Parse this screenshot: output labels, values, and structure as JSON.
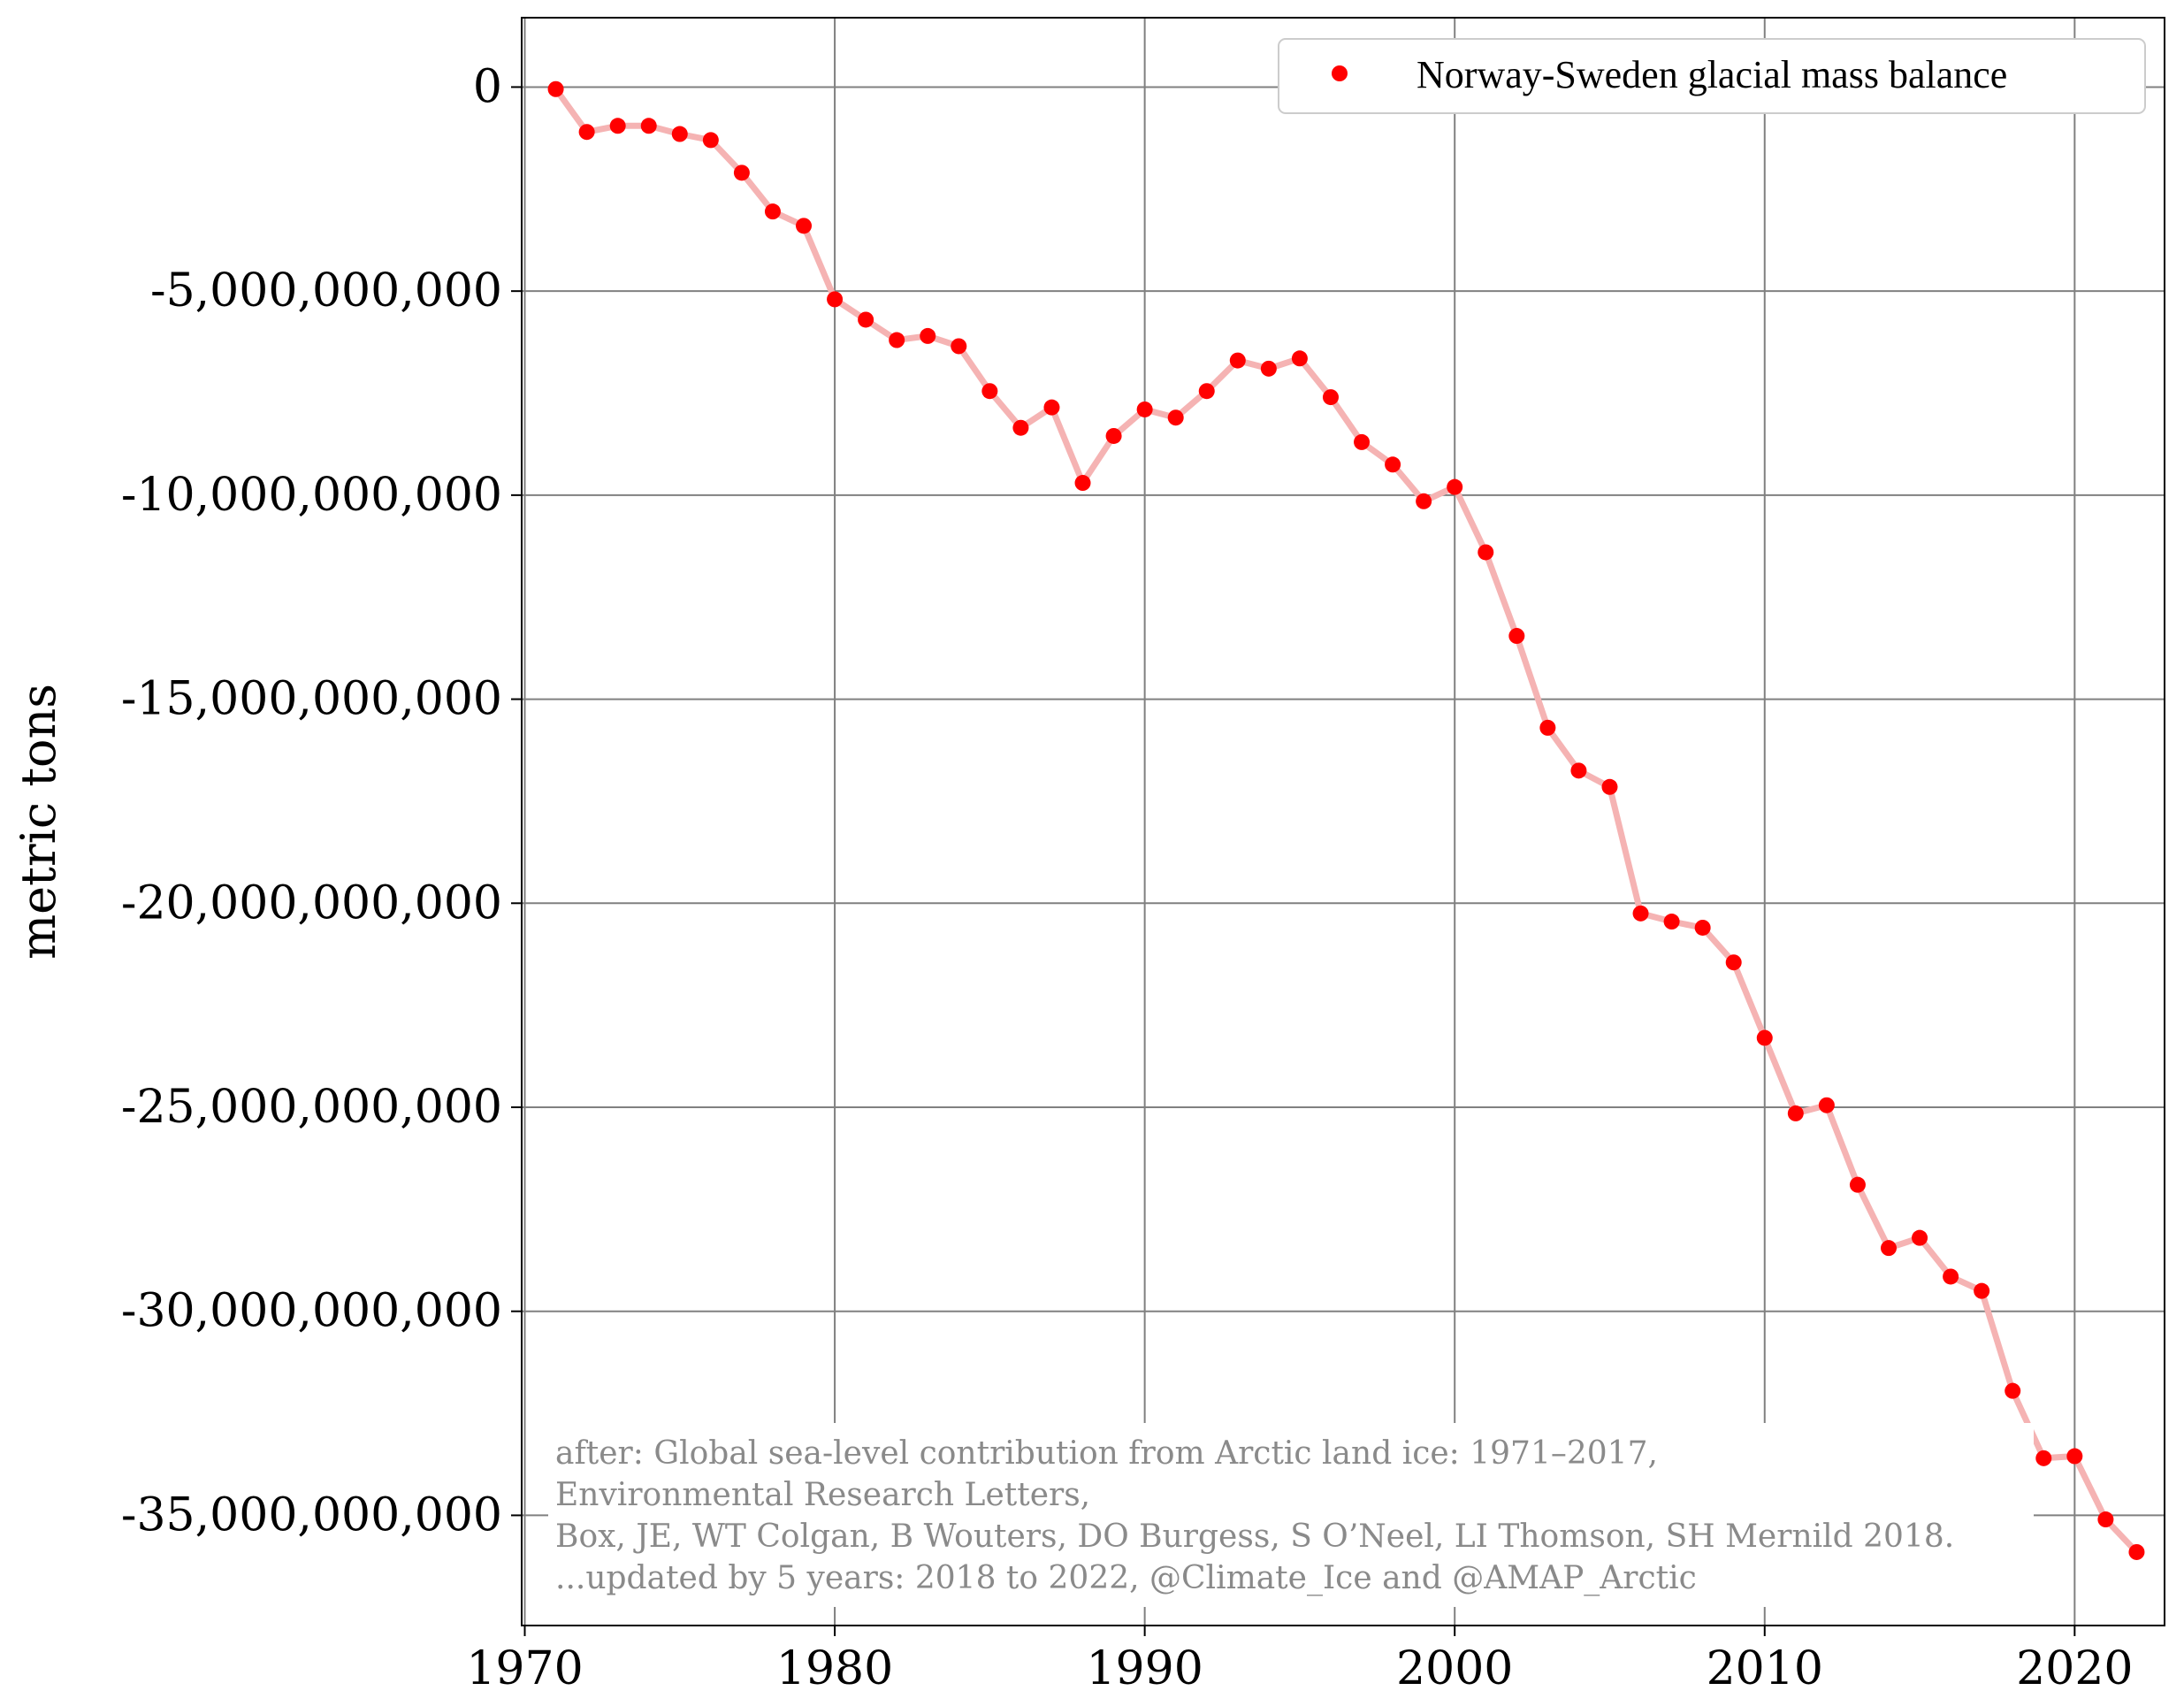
{
  "chart_data": {
    "type": "line",
    "xlabel": "",
    "ylabel": "metric tons",
    "xlim": [
      1969.9,
      2022.9
    ],
    "ylim": [
      -37700000000,
      1700000000
    ],
    "grid": true,
    "legend_position": "top-right",
    "x_ticks": [
      {
        "value": 1970,
        "label": "1970"
      },
      {
        "value": 1980,
        "label": "1980"
      },
      {
        "value": 1990,
        "label": "1990"
      },
      {
        "value": 2000,
        "label": "2000"
      },
      {
        "value": 2010,
        "label": "2010"
      },
      {
        "value": 2020,
        "label": "2020"
      }
    ],
    "y_ticks": [
      {
        "value": 0,
        "label": "0"
      },
      {
        "value": -5000000000,
        "label": "-5,000,000,000"
      },
      {
        "value": -10000000000,
        "label": "-10,000,000,000"
      },
      {
        "value": -15000000000,
        "label": "-15,000,000,000"
      },
      {
        "value": -20000000000,
        "label": "-20,000,000,000"
      },
      {
        "value": -25000000000,
        "label": "-25,000,000,000"
      },
      {
        "value": -30000000000,
        "label": "-30,000,000,000"
      },
      {
        "value": -35000000000,
        "label": "-35,000,000,000"
      }
    ],
    "series": [
      {
        "name": "Norway-Sweden glacial mass balance",
        "marker_color": "#ff0000",
        "line_color": "#f5b3b3",
        "x": [
          1971,
          1972,
          1973,
          1974,
          1975,
          1976,
          1977,
          1978,
          1979,
          1980,
          1981,
          1982,
          1983,
          1984,
          1985,
          1986,
          1987,
          1988,
          1989,
          1990,
          1991,
          1992,
          1993,
          1994,
          1995,
          1996,
          1997,
          1998,
          1999,
          2000,
          2001,
          2002,
          2003,
          2004,
          2005,
          2006,
          2007,
          2008,
          2009,
          2010,
          2011,
          2012,
          2013,
          2014,
          2015,
          2016,
          2017,
          2018,
          2019,
          2020,
          2021,
          2022
        ],
        "y": [
          -50000000,
          -1100000000,
          -950000000,
          -950000000,
          -1150000000,
          -1300000000,
          -2100000000,
          -3050000000,
          -3400000000,
          -5200000000,
          -5700000000,
          -6200000000,
          -6100000000,
          -6350000000,
          -7450000000,
          -8350000000,
          -7850000000,
          -9700000000,
          -8550000000,
          -7900000000,
          -8100000000,
          -7450000000,
          -6700000000,
          -6900000000,
          -6650000000,
          -7600000000,
          -8700000000,
          -9250000000,
          -10150000000,
          -9800000000,
          -11400000000,
          -13450000000,
          -15700000000,
          -16750000000,
          -17150000000,
          -20250000000,
          -20450000000,
          -20600000000,
          -21450000000,
          -23300000000,
          -25150000000,
          -24950000000,
          -26900000000,
          -28450000000,
          -28200000000,
          -29150000000,
          -29500000000,
          -31950000000,
          -33600000000,
          -33550000000,
          -35100000000,
          -35900000000
        ]
      }
    ],
    "annotation": [
      "after: Global sea-level contribution from Arctic land ice: 1971–2017,",
      "Environmental Research Letters,",
      "Box, JE, WT Colgan, B Wouters, DO Burgess, S O’Neel, LI Thomson, SH Mernild 2018.",
      "...updated by 5 years: 2018 to 2022, @Climate_Ice and @AMAP_Arctic"
    ]
  }
}
